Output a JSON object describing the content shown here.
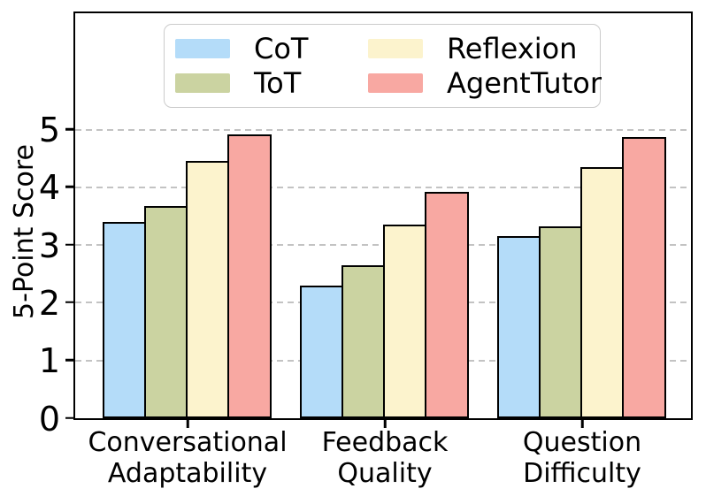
{
  "figure": {
    "background": "#FFFFFF",
    "axis_color": "#000000",
    "grid_color": "#C3C3C3",
    "bar_edge_color": "#000000",
    "legend_border_color": "#CBCBCB"
  },
  "chart_data": {
    "type": "bar",
    "title": "",
    "xlabel": "",
    "ylabel": "5-Point Score",
    "categories": [
      "Conversational\nAdaptability",
      "Feedback\nQuality",
      "Question\nDifficulty"
    ],
    "series": [
      {
        "name": "CoT",
        "color": "#B4DCF9",
        "values": [
          3.4,
          2.3,
          3.15
        ]
      },
      {
        "name": "ToT",
        "color": "#CBD3A1",
        "values": [
          3.68,
          2.65,
          3.32
        ]
      },
      {
        "name": "Reflexion",
        "color": "#FCF3CD",
        "values": [
          4.45,
          3.35,
          4.35
        ]
      },
      {
        "name": "AgentTutor",
        "color": "#F8A8A2",
        "values": [
          4.92,
          3.92,
          4.87
        ]
      }
    ],
    "ylim": [
      0,
      7
    ],
    "yticks": [
      0,
      1,
      2,
      3,
      4,
      5
    ],
    "grid": "horizontal-dashed",
    "legend_position": "upper center",
    "legend_columns": 2,
    "legend_order": "column-major"
  }
}
